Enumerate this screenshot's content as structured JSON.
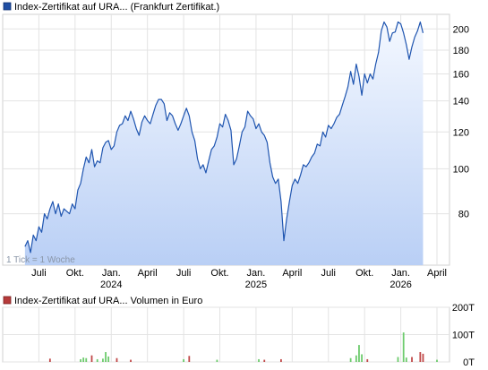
{
  "chart_data": [
    {
      "type": "area",
      "legend": "Index-Zertifikat auf URA... (Frankfurt Zertifikat.)",
      "legend_color": "#1f4ea3",
      "line_color": "#1f55b0",
      "y_scale": "log",
      "ylim": [
        62,
        215
      ],
      "y_ticks": [
        {
          "value": 80,
          "label": "80"
        },
        {
          "value": 100,
          "label": "100"
        },
        {
          "value": 120,
          "label": "120"
        },
        {
          "value": 140,
          "label": "140"
        },
        {
          "value": 160,
          "label": "160"
        },
        {
          "value": 180,
          "label": "180"
        },
        {
          "value": 200,
          "label": "200"
        }
      ],
      "x_ticks": [
        {
          "t": 5,
          "label": "Juli",
          "year": ""
        },
        {
          "t": 18,
          "label": "Okt.",
          "year": ""
        },
        {
          "t": 31,
          "label": "Jan.",
          "year": "2024"
        },
        {
          "t": 44,
          "label": "April",
          "year": ""
        },
        {
          "t": 57,
          "label": "Juli",
          "year": ""
        },
        {
          "t": 70,
          "label": "Okt.",
          "year": ""
        },
        {
          "t": 83,
          "label": "Jan.",
          "year": "2025"
        },
        {
          "t": 96,
          "label": "April",
          "year": ""
        },
        {
          "t": 109,
          "label": "Juli",
          "year": ""
        },
        {
          "t": 122,
          "label": "Okt.",
          "year": ""
        },
        {
          "t": 135,
          "label": "Jan.",
          "year": "2026"
        },
        {
          "t": 148,
          "label": "April",
          "year": ""
        }
      ],
      "t_range": [
        -8,
        152.5
      ],
      "note": "1 Tick = 1 Woche",
      "values": [
        68,
        70,
        66,
        72,
        70,
        75,
        73,
        80,
        78,
        82,
        85,
        80,
        84,
        79,
        82,
        81,
        80,
        84,
        82,
        90,
        93,
        100,
        106,
        103,
        110,
        101,
        104,
        103,
        111,
        114,
        115,
        110,
        112,
        120,
        124,
        125,
        130,
        127,
        133,
        128,
        122,
        118,
        126,
        130,
        127,
        125,
        131,
        137,
        141,
        141,
        138,
        127,
        132,
        130,
        125,
        121,
        125,
        130,
        135,
        130,
        120,
        115,
        105,
        100,
        102,
        98,
        104,
        110,
        112,
        117,
        125,
        123,
        131,
        127,
        121,
        102,
        105,
        112,
        120,
        123,
        133,
        130,
        128,
        122,
        125,
        120,
        118,
        114,
        103,
        96,
        93,
        95,
        85,
        70,
        78,
        85,
        92,
        95,
        93,
        97,
        102,
        101,
        103,
        106,
        108,
        113,
        112,
        120,
        117,
        124,
        122,
        125,
        129,
        131,
        137,
        143,
        150,
        162,
        152,
        168,
        158,
        144,
        160,
        153,
        160,
        156,
        168,
        178,
        198,
        207,
        202,
        188,
        196,
        197,
        207,
        205,
        196,
        185,
        172,
        183,
        192,
        198,
        207,
        196
      ]
    },
    {
      "type": "bar",
      "legend": "Index-Zertifikat auf URA...  Volumen in Euro",
      "legend_color": "#b63a3a",
      "ylim": [
        0,
        200
      ],
      "y_ticks": [
        {
          "value": 0,
          "label": "0T"
        },
        {
          "value": 100,
          "label": "100T"
        },
        {
          "value": 200,
          "label": "200T"
        }
      ],
      "bars": [
        {
          "t": 9,
          "value": 12,
          "color": "#c04848"
        },
        {
          "t": 20,
          "value": 10,
          "color": "#6dcb6d"
        },
        {
          "t": 21,
          "value": 16,
          "color": "#6dcb6d"
        },
        {
          "t": 22,
          "value": 14,
          "color": "#6dcb6d"
        },
        {
          "t": 24,
          "value": 24,
          "color": "#c04848"
        },
        {
          "t": 26,
          "value": 10,
          "color": "#6dcb6d"
        },
        {
          "t": 28,
          "value": 12,
          "color": "#6dcb6d"
        },
        {
          "t": 29,
          "value": 36,
          "color": "#6dcb6d"
        },
        {
          "t": 30,
          "value": 20,
          "color": "#6dcb6d"
        },
        {
          "t": 33,
          "value": 14,
          "color": "#c04848"
        },
        {
          "t": 38,
          "value": 8,
          "color": "#c04848"
        },
        {
          "t": 57,
          "value": 10,
          "color": "#6dcb6d"
        },
        {
          "t": 59,
          "value": 22,
          "color": "#c04848"
        },
        {
          "t": 69,
          "value": 8,
          "color": "#6dcb6d"
        },
        {
          "t": 84,
          "value": 10,
          "color": "#6dcb6d"
        },
        {
          "t": 86,
          "value": 8,
          "color": "#c04848"
        },
        {
          "t": 92,
          "value": 10,
          "color": "#c04848"
        },
        {
          "t": 117,
          "value": 14,
          "color": "#6dcb6d"
        },
        {
          "t": 119,
          "value": 24,
          "color": "#6dcb6d"
        },
        {
          "t": 120,
          "value": 62,
          "color": "#6dcb6d"
        },
        {
          "t": 121,
          "value": 28,
          "color": "#6dcb6d"
        },
        {
          "t": 123,
          "value": 10,
          "color": "#c04848"
        },
        {
          "t": 134,
          "value": 18,
          "color": "#6dcb6d"
        },
        {
          "t": 136,
          "value": 108,
          "color": "#6dcb6d"
        },
        {
          "t": 137,
          "value": 16,
          "color": "#6dcb6d"
        },
        {
          "t": 139,
          "value": 18,
          "color": "#c04848"
        },
        {
          "t": 142,
          "value": 36,
          "color": "#c04848"
        },
        {
          "t": 143,
          "value": 30,
          "color": "#c04848"
        },
        {
          "t": 148,
          "value": 8,
          "color": "#6dcb6d"
        }
      ]
    }
  ]
}
